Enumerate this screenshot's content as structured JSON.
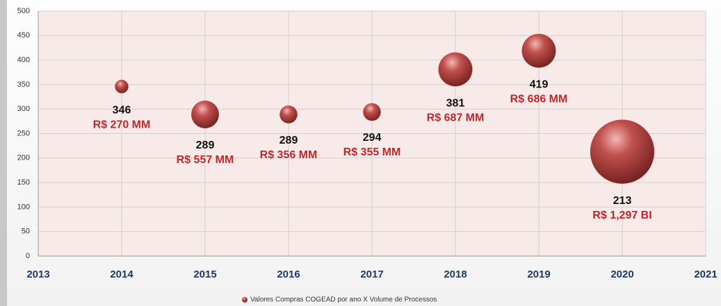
{
  "chart_data": {
    "type": "bubble",
    "x": [
      2014,
      2015,
      2016,
      2017,
      2018,
      2019,
      2020
    ],
    "series": [
      {
        "name": "Valores Compras COGEAD por ano X Volume de Processos",
        "color": "#c0504d",
        "values": [
          346,
          289,
          289,
          294,
          381,
          419,
          213
        ],
        "sizes": [
          270,
          557,
          356,
          355,
          687,
          686,
          1297
        ],
        "size_labels": [
          "R$ 270 MM",
          "R$ 557 MM",
          "R$ 356 MM",
          "R$ 355 MM",
          "R$ 687 MM",
          "R$ 686 MM",
          "R$ 1,297 BI"
        ]
      }
    ],
    "xlim": [
      2013,
      2021
    ],
    "xticks": [
      2013,
      2014,
      2015,
      2016,
      2017,
      2018,
      2019,
      2020,
      2021
    ],
    "ylim": [
      0,
      500
    ],
    "yticks": [
      0,
      50,
      100,
      150,
      200,
      250,
      300,
      350,
      400,
      450,
      500
    ],
    "grid": true,
    "legend": "bottom"
  }
}
